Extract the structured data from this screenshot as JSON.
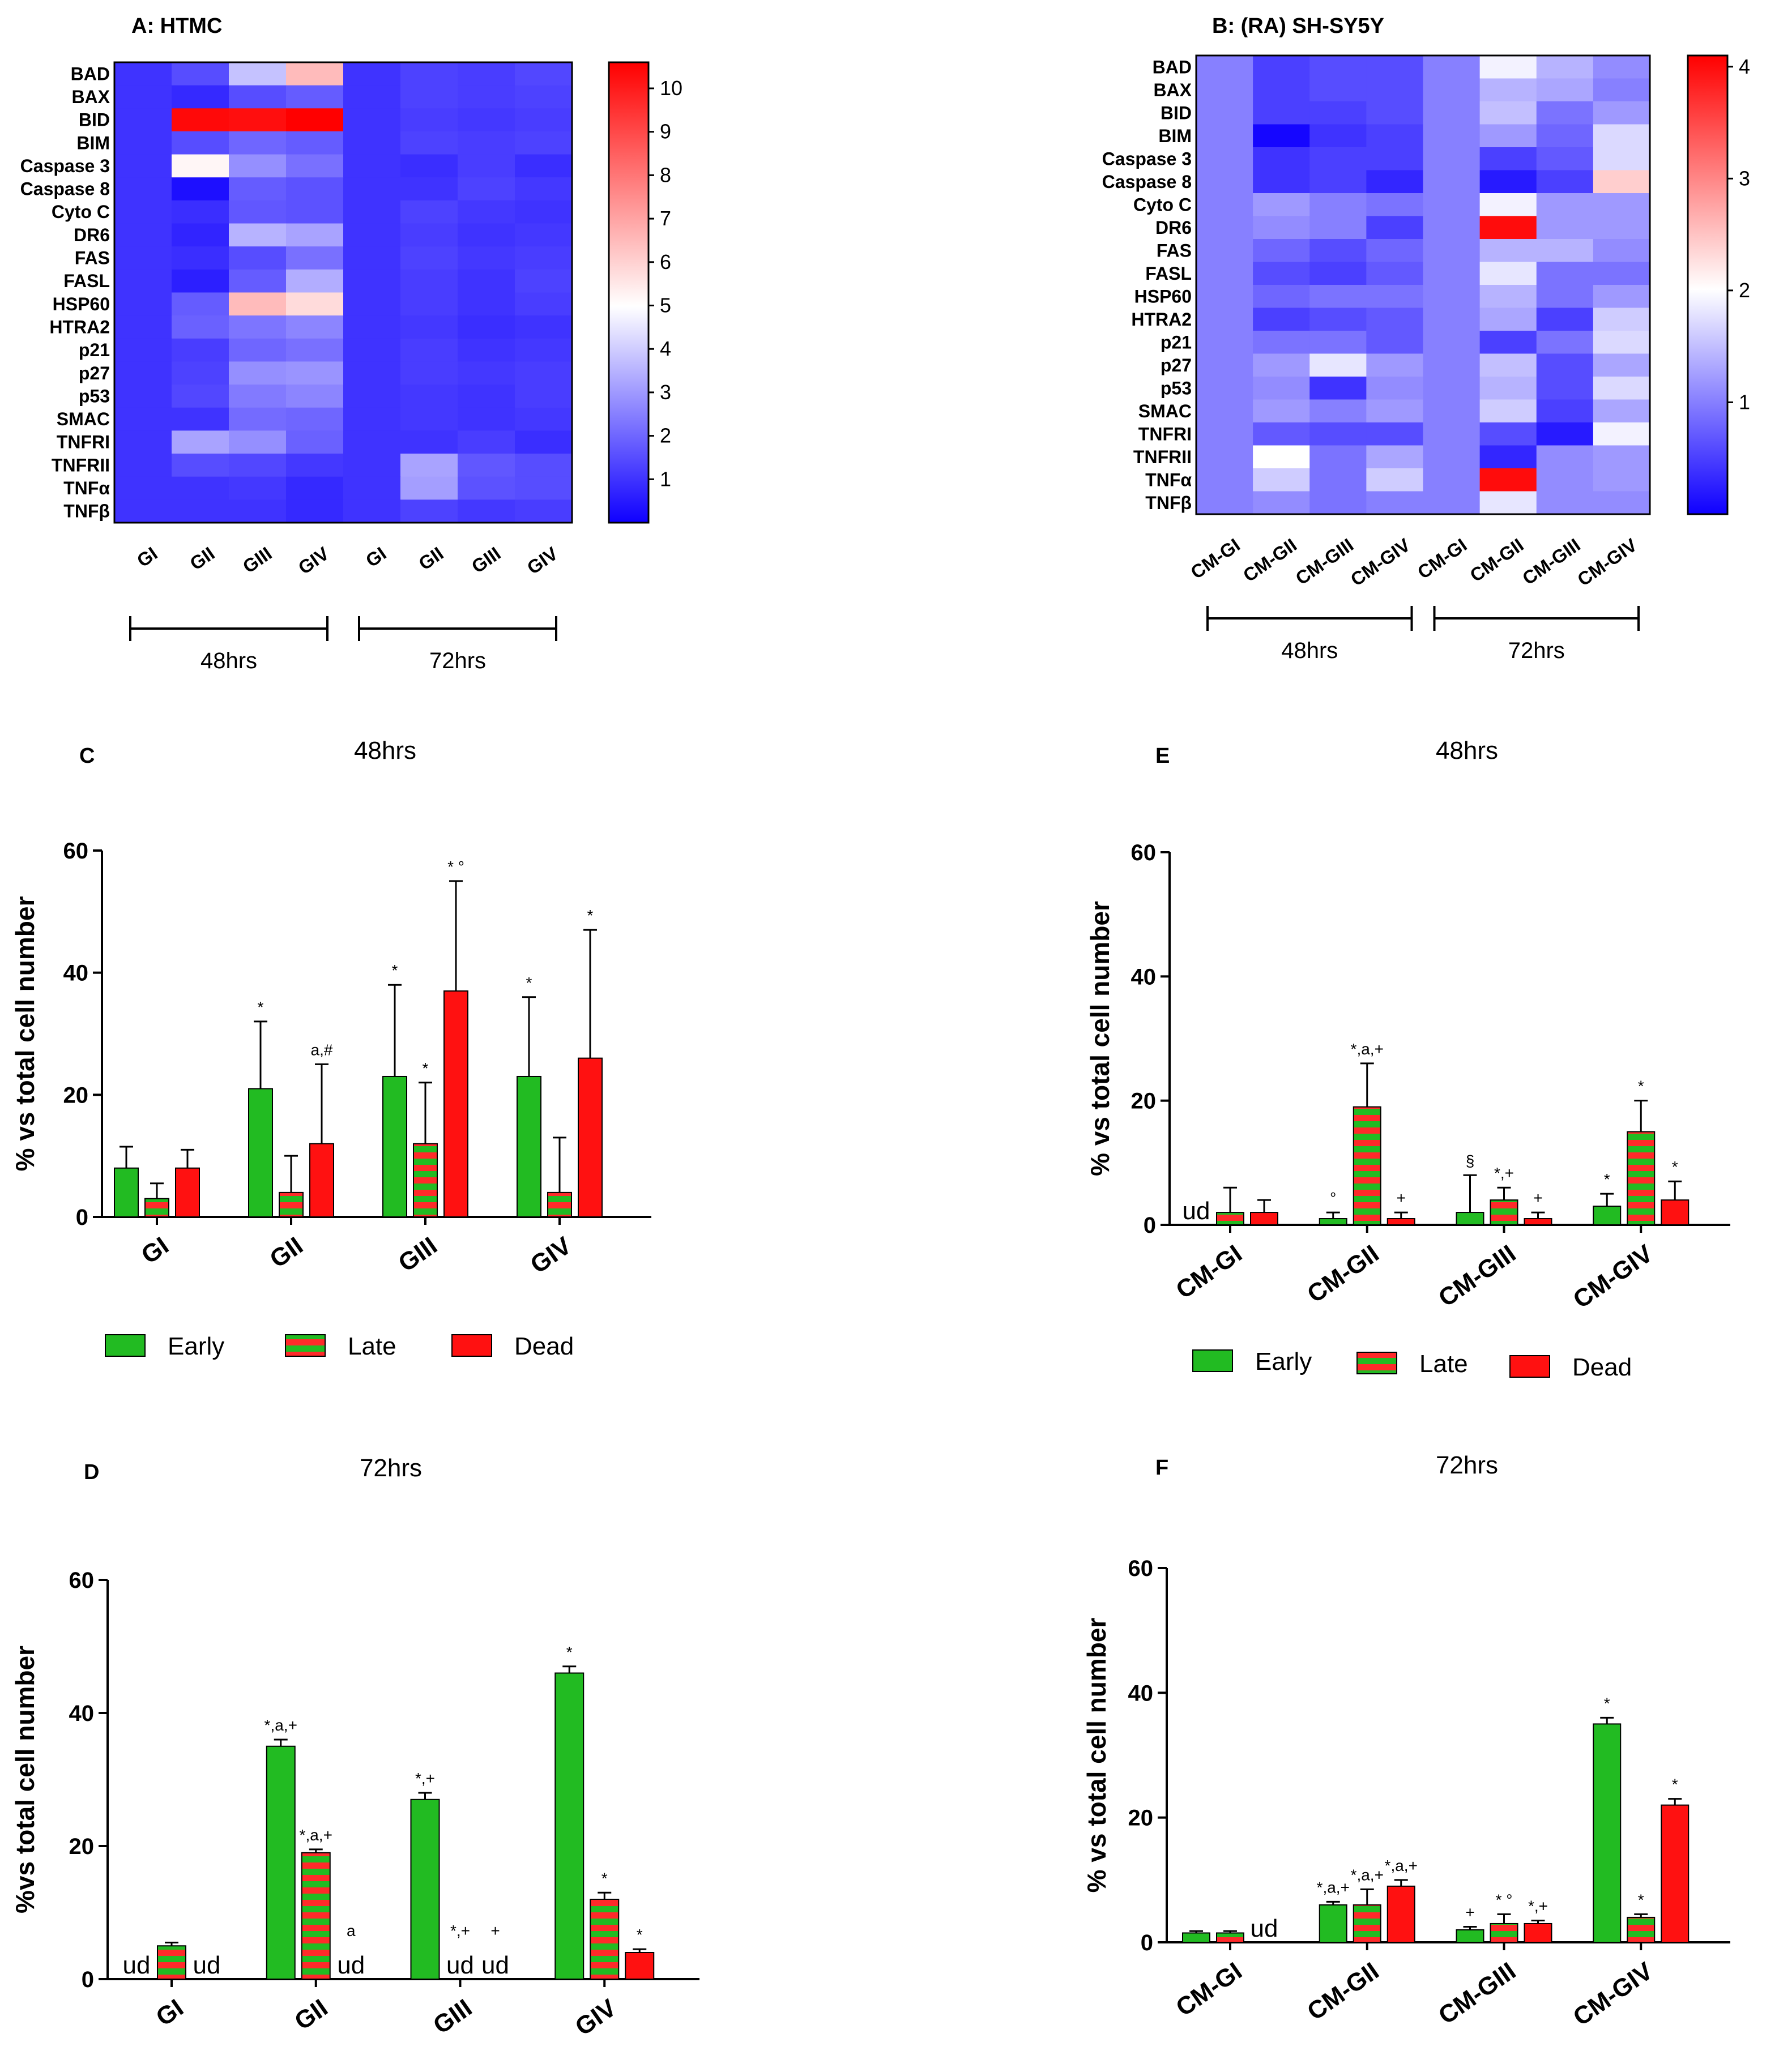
{
  "colors": {
    "heat_low": "#0f00ff",
    "heat_mid": "#ffffff",
    "heat_high": "#ff0000",
    "early": "#22bb22",
    "late_a": "#22bb22",
    "late_b": "#ff2a2a",
    "dead": "#ff1111"
  },
  "legend": {
    "early": "Early",
    "late": "Late",
    "dead": "Dead"
  },
  "chart_data": [
    {
      "panel": "A",
      "type": "heatmap",
      "title": "A: HTMC",
      "rows": [
        "BAD",
        "BAX",
        "BID",
        "BIM",
        "Caspase 3",
        "Caspase 8",
        "Cyto C",
        "DR6",
        "FAS",
        "FASL",
        "HSP60",
        "HTRA2",
        "p21",
        "p27",
        "p53",
        "SMAC",
        "TNFRI",
        "TNFRII",
        "TNFα",
        "TNFβ"
      ],
      "columns": [
        "GI",
        "GII",
        "GIII",
        "GIV",
        "GI",
        "GII",
        "GIII",
        "GIV"
      ],
      "groups": [
        {
          "label": "48hrs",
          "span": [
            0,
            3
          ]
        },
        {
          "label": "72hrs",
          "span": [
            4,
            7
          ]
        }
      ],
      "scale": {
        "min": 0,
        "mid": 5,
        "max": 10.6,
        "ticks": [
          1,
          2,
          3,
          4,
          5,
          6,
          7,
          8,
          9,
          10
        ]
      },
      "values": [
        [
          1.0,
          1.5,
          3.8,
          6.5,
          1.0,
          1.3,
          1.2,
          1.4
        ],
        [
          1.0,
          0.8,
          1.5,
          1.8,
          1.0,
          1.3,
          1.2,
          1.3
        ],
        [
          1.0,
          10.4,
          10.3,
          10.6,
          1.0,
          1.2,
          1.1,
          1.2
        ],
        [
          1.0,
          1.5,
          2.0,
          1.8,
          1.0,
          1.3,
          1.2,
          1.3
        ],
        [
          1.0,
          5.2,
          2.8,
          2.2,
          1.0,
          0.9,
          1.2,
          0.9
        ],
        [
          1.0,
          0.3,
          1.8,
          1.6,
          1.0,
          1.0,
          1.3,
          1.1
        ],
        [
          1.0,
          0.9,
          1.7,
          1.6,
          1.0,
          1.3,
          1.1,
          1.0
        ],
        [
          1.0,
          0.7,
          3.5,
          3.2,
          1.0,
          1.2,
          1.0,
          1.1
        ],
        [
          1.0,
          0.9,
          1.5,
          2.2,
          1.0,
          1.3,
          1.1,
          1.2
        ],
        [
          1.0,
          0.6,
          1.8,
          3.4,
          1.0,
          1.2,
          1.0,
          1.3
        ],
        [
          1.0,
          1.8,
          6.5,
          5.8,
          1.0,
          1.2,
          1.0,
          1.2
        ],
        [
          1.0,
          1.9,
          2.3,
          2.6,
          1.0,
          1.1,
          0.9,
          1.0
        ],
        [
          1.0,
          1.2,
          2.0,
          2.2,
          1.0,
          1.2,
          1.0,
          1.1
        ],
        [
          1.0,
          1.3,
          2.8,
          2.9,
          1.0,
          1.2,
          1.1,
          1.2
        ],
        [
          1.0,
          1.4,
          2.4,
          2.6,
          1.0,
          1.1,
          1.0,
          1.2
        ],
        [
          1.0,
          1.0,
          2.1,
          2.0,
          1.0,
          1.1,
          1.0,
          1.1
        ],
        [
          1.0,
          3.2,
          2.8,
          1.9,
          1.0,
          1.0,
          1.2,
          0.9
        ],
        [
          1.0,
          1.5,
          1.4,
          1.1,
          1.0,
          3.2,
          1.7,
          1.5
        ],
        [
          1.0,
          1.0,
          1.1,
          0.8,
          1.0,
          3.1,
          1.6,
          1.5
        ],
        [
          1.0,
          1.0,
          1.0,
          0.8,
          1.0,
          1.3,
          1.1,
          1.2
        ]
      ]
    },
    {
      "panel": "B",
      "type": "heatmap",
      "title": "B: (RA) SH-SY5Y",
      "rows": [
        "BAD",
        "BAX",
        "BID",
        "BIM",
        "Caspase 3",
        "Caspase 8",
        "Cyto C",
        "DR6",
        "FAS",
        "FASL",
        "HSP60",
        "HTRA2",
        "p21",
        "p27",
        "p53",
        "SMAC",
        "TNFRI",
        "TNFRII",
        "TNFα",
        "TNFβ"
      ],
      "columns": [
        "CM-GI",
        "CM-GII",
        "CM-GIII",
        "CM-GIV",
        "CM-GI",
        "CM-GII",
        "CM-GIII",
        "CM-GIV"
      ],
      "groups": [
        {
          "label": "48hrs",
          "span": [
            0,
            3
          ]
        },
        {
          "label": "72hrs",
          "span": [
            4,
            7
          ]
        }
      ],
      "scale": {
        "min": 0,
        "mid": 2,
        "max": 4.1,
        "ticks": [
          1,
          2,
          3,
          4
        ]
      },
      "values": [
        [
          1.0,
          0.5,
          0.6,
          0.6,
          1.0,
          1.9,
          1.4,
          1.1
        ],
        [
          1.0,
          0.5,
          0.6,
          0.6,
          1.0,
          1.4,
          1.3,
          1.0
        ],
        [
          1.0,
          0.5,
          0.5,
          0.6,
          1.0,
          1.5,
          0.9,
          1.2
        ],
        [
          1.0,
          0.05,
          0.4,
          0.5,
          1.0,
          1.2,
          0.8,
          1.7
        ],
        [
          1.0,
          0.4,
          0.5,
          0.5,
          1.0,
          0.5,
          0.7,
          1.7
        ],
        [
          1.0,
          0.4,
          0.5,
          0.3,
          1.0,
          0.2,
          0.5,
          2.4
        ],
        [
          1.0,
          1.2,
          1.0,
          0.9,
          1.0,
          1.9,
          1.2,
          1.2
        ],
        [
          1.0,
          1.1,
          1.0,
          0.5,
          1.0,
          4.0,
          1.2,
          1.2
        ],
        [
          1.0,
          0.8,
          0.6,
          0.8,
          1.0,
          1.4,
          1.4,
          1.1
        ],
        [
          1.0,
          0.6,
          0.5,
          0.7,
          1.0,
          1.8,
          0.9,
          0.9
        ],
        [
          1.0,
          0.8,
          0.9,
          0.9,
          1.0,
          1.4,
          0.9,
          1.2
        ],
        [
          1.0,
          0.5,
          0.6,
          0.7,
          1.0,
          1.3,
          0.5,
          1.6
        ],
        [
          1.0,
          0.9,
          0.9,
          0.7,
          1.0,
          0.5,
          0.9,
          1.7
        ],
        [
          1.0,
          1.2,
          1.8,
          1.2,
          1.0,
          1.5,
          0.6,
          1.3
        ],
        [
          1.0,
          1.1,
          0.4,
          1.1,
          1.0,
          1.4,
          0.6,
          1.7
        ],
        [
          1.0,
          1.2,
          1.0,
          1.2,
          1.0,
          1.6,
          0.5,
          1.3
        ],
        [
          1.0,
          0.7,
          0.6,
          0.6,
          1.0,
          0.6,
          0.2,
          1.9
        ],
        [
          1.0,
          2.0,
          0.9,
          1.3,
          1.0,
          0.3,
          1.1,
          1.2
        ],
        [
          1.0,
          1.6,
          0.9,
          1.6,
          1.0,
          4.0,
          1.1,
          1.2
        ],
        [
          1.0,
          1.1,
          0.9,
          1.0,
          1.0,
          1.8,
          1.1,
          1.1
        ]
      ]
    },
    {
      "panel": "C",
      "type": "bar",
      "title": "48hrs",
      "ylabel": "% vs total cell number",
      "ylim": [
        0,
        60
      ],
      "yticks": [
        0,
        20,
        40,
        60
      ],
      "categories": [
        "GI",
        "GII",
        "GIII",
        "GIV"
      ],
      "series": [
        {
          "name": "Early",
          "values": [
            8,
            21,
            23,
            23
          ],
          "errors": [
            3.5,
            11,
            15,
            13
          ],
          "annotations": [
            "",
            "*",
            "*",
            "*"
          ]
        },
        {
          "name": "Late",
          "values": [
            3,
            4,
            12,
            4
          ],
          "errors": [
            2.5,
            6,
            10,
            9
          ],
          "annotations": [
            "",
            "",
            "*",
            ""
          ]
        },
        {
          "name": "Dead",
          "values": [
            8,
            12,
            37,
            26
          ],
          "errors": [
            3,
            13,
            18,
            21
          ],
          "annotations": [
            "",
            "a,#",
            "* °",
            "*"
          ]
        }
      ],
      "not_detected": []
    },
    {
      "panel": "D",
      "type": "bar",
      "title": "72hrs",
      "ylabel": "%vs total cell number",
      "ylim": [
        0,
        60
      ],
      "yticks": [
        0,
        20,
        40,
        60
      ],
      "categories": [
        "GI",
        "GII",
        "GIII",
        "GIV"
      ],
      "series": [
        {
          "name": "Early",
          "values": [
            null,
            35,
            27,
            46
          ],
          "errors": [
            0,
            1,
            1,
            1
          ],
          "annotations": [
            "",
            "*,a,+",
            "*,+",
            "*"
          ]
        },
        {
          "name": "Late",
          "values": [
            5,
            19,
            null,
            12
          ],
          "errors": [
            0.5,
            0.5,
            0,
            1
          ],
          "annotations": [
            "",
            "*,a,+",
            "*,+",
            "*"
          ]
        },
        {
          "name": "Dead",
          "values": [
            null,
            null,
            null,
            4
          ],
          "errors": [
            0,
            0,
            0,
            0.5
          ],
          "annotations": [
            "",
            "a",
            "+",
            "*"
          ]
        }
      ],
      "not_detected": [
        {
          "category": 0,
          "series": 0,
          "label": "ud"
        },
        {
          "category": 0,
          "series": 2,
          "label": "ud"
        },
        {
          "category": 1,
          "series": 2,
          "label": "ud"
        },
        {
          "category": 2,
          "series": 1,
          "label": "ud"
        },
        {
          "category": 2,
          "series": 2,
          "label": "ud"
        }
      ]
    },
    {
      "panel": "E",
      "type": "bar",
      "title": "48hrs",
      "ylabel": "% vs total cell number",
      "ylim": [
        0,
        60
      ],
      "yticks": [
        0,
        20,
        40,
        60
      ],
      "categories": [
        "CM-GI",
        "CM-GII",
        "CM-GIII",
        "CM-GIV"
      ],
      "series": [
        {
          "name": "Early",
          "values": [
            null,
            1,
            2,
            3
          ],
          "errors": [
            0,
            1,
            6,
            2
          ],
          "annotations": [
            "",
            "°",
            "§",
            "*"
          ]
        },
        {
          "name": "Late",
          "values": [
            2,
            19,
            4,
            15
          ],
          "errors": [
            4,
            7,
            2,
            5
          ],
          "annotations": [
            "",
            "*,a,+",
            "*,+",
            "*"
          ]
        },
        {
          "name": "Dead",
          "values": [
            2,
            1,
            1,
            4
          ],
          "errors": [
            2,
            1,
            1,
            3
          ],
          "annotations": [
            "",
            "+",
            "+",
            "*"
          ]
        }
      ],
      "not_detected": [
        {
          "category": 0,
          "series": 0,
          "label": "ud"
        }
      ]
    },
    {
      "panel": "F",
      "type": "bar",
      "title": "72hrs",
      "ylabel": "% vs total cell number",
      "ylim": [
        0,
        60
      ],
      "yticks": [
        0,
        20,
        40,
        60
      ],
      "categories": [
        "CM-GI",
        "CM-GII",
        "CM-GIII",
        "CM-GIV"
      ],
      "series": [
        {
          "name": "Early",
          "values": [
            1.5,
            6,
            2,
            35
          ],
          "errors": [
            0.3,
            0.5,
            0.5,
            1
          ],
          "annotations": [
            "",
            "*,a,+",
            "+",
            "*"
          ]
        },
        {
          "name": "Late",
          "values": [
            1.5,
            6,
            3,
            4
          ],
          "errors": [
            0.3,
            2.5,
            1.5,
            0.5
          ],
          "annotations": [
            "",
            "*,a,+",
            "* °",
            "*"
          ]
        },
        {
          "name": "Dead",
          "values": [
            null,
            9,
            3,
            22
          ],
          "errors": [
            0,
            1,
            0.5,
            1
          ],
          "annotations": [
            "",
            "*,a,+",
            "*,+",
            "*"
          ]
        }
      ],
      "not_detected": [
        {
          "category": 0,
          "series": 2,
          "label": "ud"
        }
      ]
    }
  ]
}
